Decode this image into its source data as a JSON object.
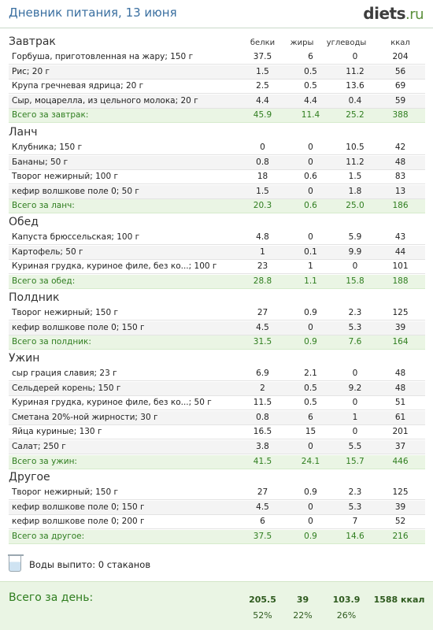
{
  "header": {
    "title": "Дневник питания, 13 июня",
    "logo_main": "diets",
    "logo_suffix": ".ru"
  },
  "columns": {
    "protein": "белки",
    "fat": "жиры",
    "carbs": "углеводы",
    "kcal": "ккал"
  },
  "meals": [
    {
      "name": "Завтрак",
      "items": [
        {
          "name": "Горбуша, приготовленная на жару; 150 г",
          "p": "37.5",
          "f": "6",
          "c": "0",
          "k": "204"
        },
        {
          "name": "Рис; 20 г",
          "p": "1.5",
          "f": "0.5",
          "c": "11.2",
          "k": "56"
        },
        {
          "name": "Крупа гречневая ядрица; 20 г",
          "p": "2.5",
          "f": "0.5",
          "c": "13.6",
          "k": "69"
        },
        {
          "name": "Сыр, моцарелла, из цельного молока; 20 г",
          "p": "4.4",
          "f": "4.4",
          "c": "0.4",
          "k": "59"
        }
      ],
      "total": {
        "name": "Всего за завтрак:",
        "p": "45.9",
        "f": "11.4",
        "c": "25.2",
        "k": "388"
      }
    },
    {
      "name": "Ланч",
      "items": [
        {
          "name": "Клубника; 150 г",
          "p": "0",
          "f": "0",
          "c": "10.5",
          "k": "42"
        },
        {
          "name": "Бананы; 50 г",
          "p": "0.8",
          "f": "0",
          "c": "11.2",
          "k": "48"
        },
        {
          "name": "Творог нежирный; 100 г",
          "p": "18",
          "f": "0.6",
          "c": "1.5",
          "k": "83"
        },
        {
          "name": "кефир волшкове поле 0; 50 г",
          "p": "1.5",
          "f": "0",
          "c": "1.8",
          "k": "13"
        }
      ],
      "total": {
        "name": "Всего за ланч:",
        "p": "20.3",
        "f": "0.6",
        "c": "25.0",
        "k": "186"
      }
    },
    {
      "name": "Обед",
      "items": [
        {
          "name": "Капуста брюссельская; 100 г",
          "p": "4.8",
          "f": "0",
          "c": "5.9",
          "k": "43"
        },
        {
          "name": "Картофель; 50 г",
          "p": "1",
          "f": "0.1",
          "c": "9.9",
          "k": "44"
        },
        {
          "name": "Куриная грудка, куриное филе, без ко...; 100 г",
          "p": "23",
          "f": "1",
          "c": "0",
          "k": "101"
        }
      ],
      "total": {
        "name": "Всего за обед:",
        "p": "28.8",
        "f": "1.1",
        "c": "15.8",
        "k": "188"
      }
    },
    {
      "name": "Полдник",
      "items": [
        {
          "name": "Творог нежирный; 150 г",
          "p": "27",
          "f": "0.9",
          "c": "2.3",
          "k": "125"
        },
        {
          "name": "кефир волшкове поле 0; 150 г",
          "p": "4.5",
          "f": "0",
          "c": "5.3",
          "k": "39"
        }
      ],
      "total": {
        "name": "Всего за полдник:",
        "p": "31.5",
        "f": "0.9",
        "c": "7.6",
        "k": "164"
      }
    },
    {
      "name": "Ужин",
      "items": [
        {
          "name": "сыр грация славия; 23 г",
          "p": "6.9",
          "f": "2.1",
          "c": "0",
          "k": "48"
        },
        {
          "name": "Сельдерей корень; 150 г",
          "p": "2",
          "f": "0.5",
          "c": "9.2",
          "k": "48"
        },
        {
          "name": "Куриная грудка, куриное филе, без ко...; 50 г",
          "p": "11.5",
          "f": "0.5",
          "c": "0",
          "k": "51"
        },
        {
          "name": "Сметана 20%-ной жирности; 30 г",
          "p": "0.8",
          "f": "6",
          "c": "1",
          "k": "61"
        },
        {
          "name": "Яйца куриные; 130 г",
          "p": "16.5",
          "f": "15",
          "c": "0",
          "k": "201"
        },
        {
          "name": "Салат; 250 г",
          "p": "3.8",
          "f": "0",
          "c": "5.5",
          "k": "37"
        }
      ],
      "total": {
        "name": "Всего за ужин:",
        "p": "41.5",
        "f": "24.1",
        "c": "15.7",
        "k": "446"
      }
    },
    {
      "name": "Другое",
      "items": [
        {
          "name": "Творог нежирный; 150 г",
          "p": "27",
          "f": "0.9",
          "c": "2.3",
          "k": "125"
        },
        {
          "name": "кефир волшкове поле 0; 150 г",
          "p": "4.5",
          "f": "0",
          "c": "5.3",
          "k": "39"
        },
        {
          "name": "кефир волшкове поле 0; 200 г",
          "p": "6",
          "f": "0",
          "c": "7",
          "k": "52"
        }
      ],
      "total": {
        "name": "Всего за другое:",
        "p": "37.5",
        "f": "0.9",
        "c": "14.6",
        "k": "216"
      }
    }
  ],
  "water": {
    "text": "Воды выпито: 0 стаканов"
  },
  "day_total": {
    "label": "Всего за день:",
    "p": "205.5",
    "f": "39",
    "c": "103.9",
    "k": "1588 ккал",
    "p_pct": "52%",
    "f_pct": "22%",
    "c_pct": "26%"
  }
}
